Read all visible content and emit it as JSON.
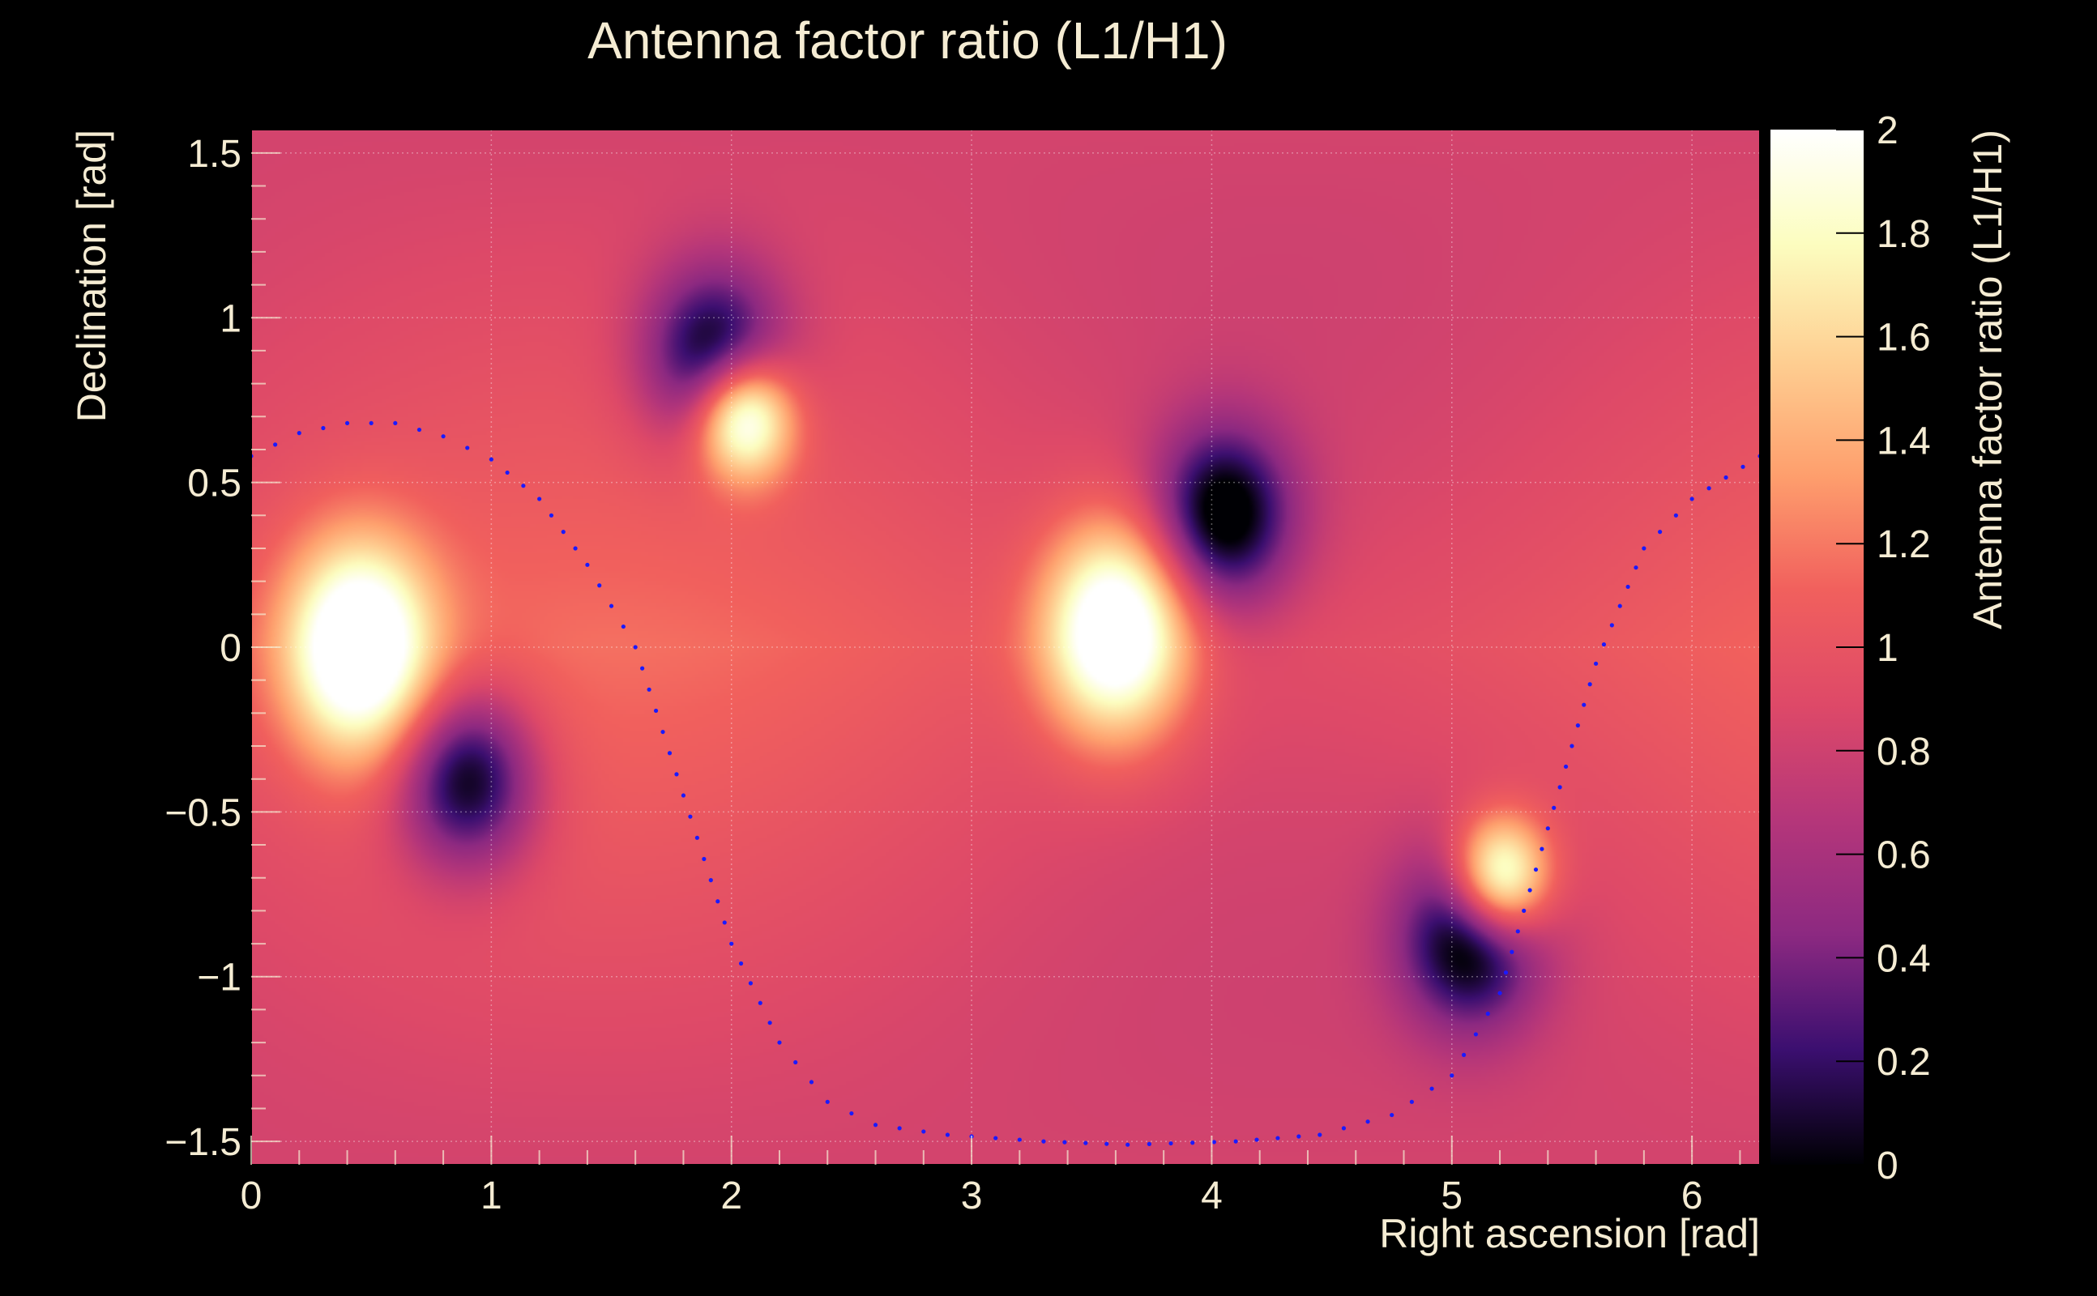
{
  "chart_data": {
    "type": "heatmap",
    "title": "Antenna factor ratio (L1/H1)",
    "xlabel": "Right ascension [rad]",
    "ylabel": "Declination [rad]",
    "zlabel": "Antenna factor ratio (L1/H1)",
    "xlim": [
      0,
      6.283
    ],
    "ylim": [
      -1.571,
      1.571
    ],
    "zlim": [
      0,
      2
    ],
    "x_ticks": [
      0,
      1,
      2,
      3,
      4,
      5,
      6
    ],
    "x_tick_labels": [
      "0",
      "1",
      "2",
      "3",
      "4",
      "5",
      "6"
    ],
    "y_ticks": [
      -1.5,
      -1,
      -0.5,
      0,
      0.5,
      1,
      1.5
    ],
    "y_tick_labels": [
      "−1.5",
      "−1",
      "−0.5",
      "0",
      "0.5",
      "1",
      "1.5"
    ],
    "z_ticks": [
      0,
      0.2,
      0.4,
      0.6,
      0.8,
      1,
      1.2,
      1.4,
      1.6,
      1.8,
      2
    ],
    "z_tick_labels": [
      "0",
      "0.2",
      "0.4",
      "0.6",
      "0.8",
      "1",
      "1.2",
      "1.4",
      "1.6",
      "1.8",
      "2"
    ],
    "grid": true,
    "colormap": [
      "#000004",
      "#3b0f70",
      "#8c2981",
      "#b5367a",
      "#de4968",
      "#f1605d",
      "#fe9f6d",
      "#fecf92",
      "#fcfdbf",
      "#ffffff"
    ],
    "peaks": [
      {
        "x": 0.45,
        "y": 0.0,
        "value": 2
      },
      {
        "x": 3.6,
        "y": 0.05,
        "value": 2
      },
      {
        "x": 2.05,
        "y": 0.7,
        "value": 2
      },
      {
        "x": 5.2,
        "y": -0.7,
        "value": 2
      }
    ],
    "minima": [
      {
        "x": 0.9,
        "y": -0.4,
        "value": 0
      },
      {
        "x": 4.05,
        "y": 0.4,
        "value": 0
      },
      {
        "x": 1.93,
        "y": 0.88,
        "value": 0
      },
      {
        "x": 5.08,
        "y": -0.88,
        "value": 0
      }
    ],
    "overlay_curve": {
      "style": "dotted",
      "color": "#1a1aff",
      "points": [
        [
          0,
          0.58
        ],
        [
          0.2,
          0.65
        ],
        [
          0.4,
          0.68
        ],
        [
          0.6,
          0.68
        ],
        [
          0.8,
          0.64
        ],
        [
          1.0,
          0.57
        ],
        [
          1.2,
          0.45
        ],
        [
          1.4,
          0.25
        ],
        [
          1.6,
          0.0
        ],
        [
          1.8,
          -0.45
        ],
        [
          2.0,
          -0.9
        ],
        [
          2.2,
          -1.2
        ],
        [
          2.4,
          -1.38
        ],
        [
          2.6,
          -1.45
        ],
        [
          2.9,
          -1.48
        ],
        [
          3.3,
          -1.5
        ],
        [
          3.65,
          -1.51
        ],
        [
          4.1,
          -1.5
        ],
        [
          4.45,
          -1.48
        ],
        [
          4.75,
          -1.42
        ],
        [
          5.0,
          -1.3
        ],
        [
          5.2,
          -1.05
        ],
        [
          5.4,
          -0.55
        ],
        [
          5.6,
          -0.05
        ],
        [
          5.8,
          0.3
        ],
        [
          6.0,
          0.45
        ],
        [
          6.283,
          0.58
        ]
      ]
    }
  }
}
